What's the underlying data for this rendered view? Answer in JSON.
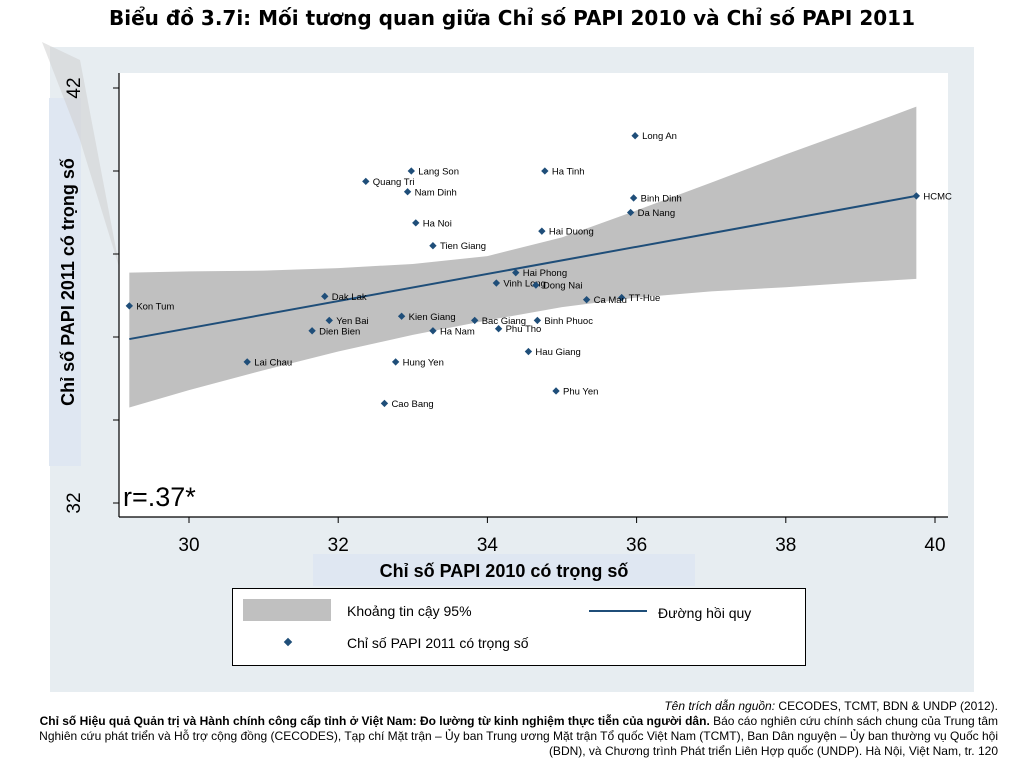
{
  "title": "Biểu đồ 3.7i: Mối tương quan giữa Chỉ số PAPI 2010 và Chỉ số PAPI 2011",
  "colors": {
    "point": "#1f4e79",
    "line": "#1f4e79",
    "band": "#c0c0c0",
    "plot_bg": "#e7edf1"
  },
  "chart_data": {
    "type": "scatter",
    "xlabel": "Chỉ số PAPI 2010 có trọng số",
    "ylabel": "Chỉ số PAPI 2011 có trọng số",
    "xlim": [
      29,
      40.2
    ],
    "ylim": [
      31.8,
      42.2
    ],
    "xticks": [
      30,
      32,
      34,
      36,
      38,
      40
    ],
    "yticks": [
      32,
      42
    ],
    "grid": false,
    "annotation": "r=.37*",
    "points": [
      {
        "label": "Long An",
        "x": 35.98,
        "y": 40.85
      },
      {
        "label": "Lang Son",
        "x": 32.98,
        "y": 40.0
      },
      {
        "label": "Ha Tinh",
        "x": 34.77,
        "y": 40.0
      },
      {
        "label": "Quang Tri",
        "x": 32.37,
        "y": 39.75
      },
      {
        "label": "Nam Dinh",
        "x": 32.93,
        "y": 39.5
      },
      {
        "label": "HCMC",
        "x": 39.75,
        "y": 39.4
      },
      {
        "label": "Binh Dinh",
        "x": 35.96,
        "y": 39.35
      },
      {
        "label": "Da Nang",
        "x": 35.92,
        "y": 39.0
      },
      {
        "label": "Ha Noi",
        "x": 33.04,
        "y": 38.75
      },
      {
        "label": "Hai Duong",
        "x": 34.73,
        "y": 38.55
      },
      {
        "label": "Tien Giang",
        "x": 33.27,
        "y": 38.2
      },
      {
        "label": "Hai Phong",
        "x": 34.38,
        "y": 37.55
      },
      {
        "label": "Vinh Long",
        "x": 34.12,
        "y": 37.3
      },
      {
        "label": "Dong Nai",
        "x": 34.65,
        "y": 37.25
      },
      {
        "label": "TT-Hue",
        "x": 35.8,
        "y": 36.95
      },
      {
        "label": "Ca Mau",
        "x": 35.33,
        "y": 36.9
      },
      {
        "label": "Dak Lak",
        "x": 31.82,
        "y": 36.98
      },
      {
        "label": "Kon Tum",
        "x": 29.2,
        "y": 36.75
      },
      {
        "label": "Kien Giang",
        "x": 32.85,
        "y": 36.5
      },
      {
        "label": "Yen Bai",
        "x": 31.88,
        "y": 36.4
      },
      {
        "label": "Bac Giang",
        "x": 33.83,
        "y": 36.4
      },
      {
        "label": "Binh Phuoc",
        "x": 34.67,
        "y": 36.4
      },
      {
        "label": "Phu Tho",
        "x": 34.15,
        "y": 36.2
      },
      {
        "label": "Ha Nam",
        "x": 33.27,
        "y": 36.15
      },
      {
        "label": "Dien Bien",
        "x": 31.65,
        "y": 36.15
      },
      {
        "label": "Lai Chau",
        "x": 30.78,
        "y": 35.4
      },
      {
        "label": "Hung Yen",
        "x": 32.77,
        "y": 35.4
      },
      {
        "label": "Hau Giang",
        "x": 34.55,
        "y": 35.65
      },
      {
        "label": "Phu Yen",
        "x": 34.92,
        "y": 34.7
      },
      {
        "label": "Cao Bang",
        "x": 32.62,
        "y": 34.4
      }
    ],
    "fit_line": {
      "x": [
        29.2,
        39.75
      ],
      "y": [
        35.95,
        39.4
      ]
    },
    "ci_band": {
      "x": [
        29.2,
        30.0,
        31.0,
        32.0,
        33.0,
        34.0,
        35.0,
        36.0,
        37.0,
        38.0,
        39.0,
        39.75
      ],
      "upper": [
        37.55,
        37.58,
        37.6,
        37.66,
        37.76,
        37.95,
        38.4,
        39.05,
        39.72,
        40.4,
        41.05,
        41.55
      ],
      "lower": [
        34.3,
        34.72,
        35.2,
        35.65,
        36.05,
        36.4,
        36.72,
        36.95,
        37.1,
        37.2,
        37.32,
        37.4
      ]
    }
  },
  "legend": {
    "band_label": "Khoảng tin cậy 95%",
    "line_label": "Đường hồi quy",
    "point_label": "Chỉ số PAPI 2011 có trọng số"
  },
  "source": {
    "prefix": "Tên trích dẫn nguồn:",
    "prefix_rest": " CECODES, TCMT, BDN & UNDP (2012).",
    "bold": "Chỉ số Hiệu quả Quản trị và Hành chính công cấp tỉnh ở Việt Nam: Đo lường từ kinh nghiệm thực tiễn của người dân.",
    "rest": " Báo cáo nghiên cứu chính sách chung của Trung tâm Nghiên cứu phát triển và Hỗ trợ cộng đồng (CECODES), Tạp chí Mặt trận – Ủy ban Trung ương Mặt trận Tổ quốc Việt Nam (TCMT), Ban Dân nguyện – Ủy ban thường vụ Quốc hội (BDN), và Chương trình Phát triển Liên Hợp quốc (UNDP). Hà Nội, Việt Nam, tr. 120"
  }
}
